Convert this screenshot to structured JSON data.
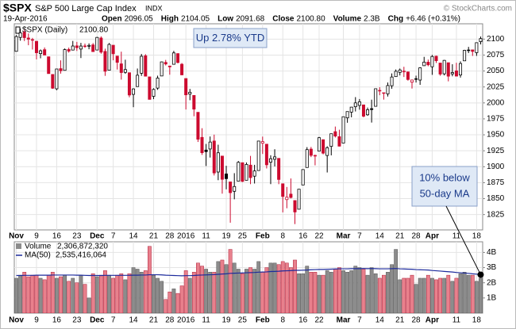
{
  "header": {
    "symbol": "$SPX",
    "name": "S&P 500 Large Cap Index",
    "exchange": "INDX",
    "credit": "© StockCharts.com",
    "date": "19-Apr-2016",
    "stats": [
      {
        "label": "Open",
        "value": "2096.05"
      },
      {
        "label": "High",
        "value": "2104.05"
      },
      {
        "label": "Low",
        "value": "2091.68"
      },
      {
        "label": "Close",
        "value": "2100.80"
      },
      {
        "label": "Volume",
        "value": "2.3B"
      },
      {
        "label": "Chg",
        "value": "+6.46 (+0.31%)"
      }
    ]
  },
  "chart_data": [
    {
      "type": "candlestick",
      "name": "$SPX (Daily)",
      "legend_value": "2100.80",
      "up_color": "#000000",
      "down_color": "#cc0a2f",
      "grid": true,
      "categories": [
        "Nov",
        null,
        null,
        null,
        null,
        "9",
        null,
        null,
        null,
        null,
        "16",
        null,
        null,
        null,
        null,
        "23",
        null,
        null,
        null,
        null,
        "Dec",
        null,
        null,
        null,
        "7",
        null,
        null,
        null,
        null,
        "14",
        null,
        null,
        null,
        null,
        "21",
        null,
        null,
        null,
        "28",
        null,
        null,
        null,
        "2016",
        null,
        null,
        null,
        null,
        "11",
        null,
        null,
        null,
        null,
        "19",
        null,
        null,
        null,
        "25",
        null,
        null,
        null,
        null,
        "Feb",
        null,
        null,
        null,
        null,
        "8",
        null,
        null,
        null,
        null,
        "16",
        null,
        null,
        null,
        "22",
        null,
        null,
        null,
        null,
        null,
        "Mar",
        null,
        null,
        null,
        "7",
        null,
        null,
        null,
        null,
        "14",
        null,
        null,
        null,
        null,
        "21",
        null,
        null,
        null,
        "28",
        null,
        null,
        null,
        "Apr",
        null,
        null,
        null,
        null,
        null,
        "11",
        null,
        null,
        null,
        null,
        "18",
        null
      ],
      "open": [
        2080.8,
        2102.6,
        2110.6,
        2101.7,
        2098.6,
        2096.6,
        2077.3,
        2083.4,
        2072.3,
        2044.6,
        2022.1,
        2053.7,
        2051.0,
        2083.7,
        2082.8,
        2089.4,
        2084.4,
        2089.3,
        2088.8,
        2090.9,
        2082.9,
        2101.7,
        2080.7,
        2051.2,
        2090.4,
        2073.4,
        2061.2,
        2047.9,
        2047.3,
        2013.4,
        2025.6,
        2046.5,
        2073.8,
        2040.8,
        2010.3,
        2023.2,
        2042.2,
        2063.5,
        2057.8,
        2060.5,
        2077.3,
        2060.6,
        2038.2,
        2013.8,
        2011.7,
        1985.3,
        1945.97,
        1926.1,
        1927.8,
        1940.3,
        1891.7,
        1916.7,
        1888.7,
        1876.2,
        1861.5,
        1877.4,
        1906.3,
        1878.8,
        1902.5,
        1885.2,
        1894.0,
        1936.9,
        1935.3,
        1907.1,
        1911.7,
        1913.1,
        1873.3,
        1848.5,
        1857.1,
        1847.0,
        1833.4,
        1871.4,
        1898.8,
        1927.6,
        1916.7,
        1924.4,
        1942.4,
        1917.6,
        1931.9,
        1954.95,
        1947.1,
        1937.1,
        1976.6,
        1985.6,
        1994.0,
        1996.1,
        1996.9,
        1981.4,
        1990.97,
        1994.7,
        2019.3,
        2015.3,
        2014.2,
        2026.9,
        2041.2,
        2047.9,
        2048.6,
        2048.6,
        2032.5,
        2037.9,
        2035.8,
        2058.3,
        2063.8,
        2056.6,
        2073.2,
        2062.5,
        2045.6,
        2063.0,
        2045.5,
        2050.2,
        2043.7,
        2065.9,
        2082.9,
        2083.1,
        2078.8,
        2096.05
      ],
      "high": [
        2106.2,
        2116.5,
        2114.6,
        2108.8,
        2101.9,
        2096.6,
        2083.7,
        2086.9,
        2072.3,
        2044.6,
        2053.2,
        2066.7,
        2085.3,
        2086.7,
        2097.1,
        2095.6,
        2094.1,
        2093.0,
        2093.3,
        2093.8,
        2103.4,
        2104.3,
        2085.0,
        2093.8,
        2090.4,
        2073.4,
        2080.3,
        2067.7,
        2047.3,
        2022.9,
        2053.9,
        2076.7,
        2076.4,
        2040.8,
        2022.9,
        2042.7,
        2064.7,
        2067.4,
        2057.8,
        2081.6,
        2077.3,
        2062.5,
        2038.2,
        2021.9,
        2011.7,
        1985.3,
        1960.4,
        1935.7,
        1947.4,
        1950.3,
        1934.5,
        1916.7,
        1901.4,
        1876.2,
        1889.9,
        1908.9,
        1906.3,
        1906.7,
        1916.98,
        1902.96,
        1940.2,
        1947.2,
        1935.3,
        1918.0,
        1927.4,
        1913.1,
        1873.3,
        1868.3,
        1881.6,
        1847.0,
        1864.8,
        1895.8,
        1930.7,
        1930.99,
        1918.8,
        1946.7,
        1942.4,
        1932.1,
        1951.8,
        1962.96,
        1958.0,
        1978.4,
        1986.5,
        1993.7,
        2009.1,
        2006.1,
        1996.9,
        1992.7,
        2005.1,
        2022.4,
        2024.6,
        2015.9,
        2032.0,
        2046.2,
        2052.4,
        2053.9,
        2056.6,
        2048.6,
        2036.0,
        2042.7,
        2055.9,
        2072.2,
        2067.9,
        2075.1,
        2074.0,
        2062.5,
        2067.3,
        2063.0,
        2060.6,
        2062.9,
        2065.1,
        2083.2,
        2087.8,
        2083.2,
        2094.7,
        2104.05
      ],
      "low": [
        2080.8,
        2097.5,
        2096.98,
        2090.4,
        2083.7,
        2068.2,
        2069.9,
        2074.9,
        2045.7,
        2022.0,
        2019.9,
        2045.9,
        2051.0,
        2078.8,
        2082.8,
        2081.4,
        2070.3,
        2086.3,
        2084.1,
        2080.4,
        2082.9,
        2077.1,
        2042.4,
        2051.2,
        2066.8,
        2052.3,
        2036.5,
        2045.7,
        2008.8,
        1993.3,
        2025.6,
        2042.4,
        2041.7,
        2005.3,
        2005.9,
        2020.5,
        2042.2,
        2058.7,
        2044.2,
        2060.5,
        2061.97,
        2043.6,
        1989.7,
        2004.2,
        1979.1,
        1938.8,
        1918.5,
        1901.1,
        1914.4,
        1886.3,
        1878.9,
        1857.8,
        1864.6,
        1812.3,
        1848.98,
        1877.4,
        1875.97,
        1878.8,
        1872.7,
        1873.7,
        1894.0,
        1920.0,
        1897.3,
        1872.7,
        1900.5,
        1872.65,
        1828.5,
        1834.9,
        1850.3,
        1810.1,
        1833.4,
        1871.4,
        1898.8,
        1915.1,
        1902.2,
        1924.4,
        1919.4,
        1891.0,
        1917.8,
        1945.8,
        1931.8,
        1937.1,
        1968.9,
        1977.4,
        1986.6,
        1989.4,
        1977.4,
        1979.8,
        1969.2,
        1994.7,
        2012.1,
        2005.2,
        2010.0,
        2022.2,
        2041.2,
        2043.1,
        2040.6,
        2034.9,
        2022.5,
        2031.96,
        2028.3,
        2058.3,
        2057.5,
        2043.98,
        2062.6,
        2042.6,
        2043.1,
        2033.8,
        2041.7,
        2041.9,
        2039.7,
        2065.9,
        2078.1,
        2073.6,
        2073.7,
        2091.68
      ],
      "close": [
        2104.05,
        2109.79,
        2102.31,
        2099.93,
        2099.2,
        2078.58,
        2081.72,
        2075.0,
        2045.97,
        2023.04,
        2053.19,
        2050.44,
        2083.58,
        2081.24,
        2089.17,
        2086.59,
        2089.14,
        2088.87,
        2090.11,
        2080.41,
        2102.63,
        2079.51,
        2049.62,
        2091.69,
        2077.07,
        2063.59,
        2047.62,
        2052.23,
        2012.37,
        2021.94,
        2043.41,
        2073.07,
        2041.89,
        2005.55,
        2021.15,
        2038.97,
        2064.29,
        2060.99,
        2056.5,
        2078.36,
        2063.36,
        2043.94,
        2012.66,
        2016.71,
        1990.26,
        1943.09,
        1922.03,
        1923.67,
        1938.68,
        1890.28,
        1921.84,
        1880.33,
        1881.33,
        1859.33,
        1868.99,
        1906.9,
        1877.08,
        1903.63,
        1882.95,
        1893.36,
        1940.24,
        1939.38,
        1903.03,
        1912.53,
        1915.45,
        1880.05,
        1853.44,
        1852.21,
        1851.86,
        1829.08,
        1864.78,
        1895.58,
        1926.82,
        1917.83,
        1917.78,
        1945.5,
        1921.27,
        1929.8,
        1951.7,
        1948.05,
        1932.23,
        1978.35,
        1986.45,
        1993.4,
        1999.99,
        2001.76,
        1979.26,
        1989.26,
        1989.57,
        2022.19,
        2019.64,
        2015.93,
        2027.22,
        2040.59,
        2049.58,
        2051.6,
        2049.8,
        2036.71,
        2035.94,
        2037.05,
        2055.01,
        2063.95,
        2059.74,
        2072.78,
        2066.13,
        2045.17,
        2066.66,
        2041.91,
        2047.6,
        2041.99,
        2061.72,
        2082.42,
        2082.78,
        2080.73,
        2094.34,
        2100.8
      ],
      "ylim": [
        1801,
        2124
      ],
      "yticks": [
        1825,
        1850,
        1875,
        1900,
        1925,
        1950,
        1975,
        2000,
        2025,
        2050,
        2075,
        2100
      ],
      "annotations": [
        {
          "text": "Up 2.78% YTD"
        }
      ]
    },
    {
      "type": "bar",
      "name": "Volume",
      "legend_value": "2,306,872,320",
      "up_color": "#8c8c8c",
      "down_color": "#e8808c",
      "grid": true,
      "values": [
        2300000000.0,
        2500000000.0,
        2700000000.0,
        2400000000.0,
        2500000000.0,
        2500000000.0,
        2300000000.0,
        2200000000.0,
        2500000000.0,
        2700000000.0,
        2300000000.0,
        2400000000.0,
        2500000000.0,
        2100000000.0,
        2300000000.0,
        2000000000.0,
        2500000000.0,
        1900000000.0,
        1000000000.0,
        2600000000.0,
        2400000000.0,
        2500000000.0,
        2800000000.0,
        2500000000.0,
        2300000000.0,
        2500000000.0,
        2600000000.0,
        2200000000.0,
        2600000000.0,
        3000000000.0,
        2900000000.0,
        2700000000.0,
        2800000000.0,
        4400000000.0,
        2500000000.0,
        2300000000.0,
        2100000000.0,
        900000000.0,
        1400000000.0,
        1600000000.0,
        1300000000.0,
        1800000000.0,
        2800000000.0,
        2300000000.0,
        2700000000.0,
        3300000000.0,
        3100000000.0,
        2900000000.0,
        2700000000.0,
        2700000000.0,
        3400000000.0,
        3500000000.0,
        3200000000.0,
        4200000000.0,
        3300000000.0,
        2900000000.0,
        2600000000.0,
        2900000000.0,
        3000000000.0,
        2900000000.0,
        3400000000.0,
        2700000000.0,
        3000000000.0,
        3300000000.0,
        3300000000.0,
        3200000000.0,
        3400000000.0,
        3300000000.0,
        3000000000.0,
        3500000000.0,
        2600000000.0,
        2600000000.0,
        3100000000.0,
        2700000000.0,
        2700000000.0,
        2500000000.0,
        2500000000.0,
        2800000000.0,
        2700000000.0,
        2900000000.0,
        3000000000.0,
        2800000000.0,
        2700000000.0,
        2800000000.0,
        3100000000.0,
        3000000000.0,
        2900000000.0,
        2500000000.0,
        3000000000.0,
        2600000000.0,
        2300000000.0,
        2500000000.0,
        2700000000.0,
        3200000000.0,
        4200000000.0,
        2200000000.0,
        2300000000.0,
        2300000000.0,
        2500000000.0,
        1900000000.0,
        2300000000.0,
        2300000000.0,
        2500000000.0,
        2300000000.0,
        2200000000.0,
        2300000000.0,
        2300000000.0,
        2500000000.0,
        2100000000.0,
        2300000000.0,
        2600000000.0,
        2700000000.0,
        2500000000.0,
        2500000000.0,
        2100000000.0,
        2306872320
      ],
      "series": [
        {
          "name": "MA(50)",
          "legend_value": "2,535,416,064",
          "color": "#1c2a9c",
          "values": [
            2480000000.0,
            2480000000.0,
            2490000000.0,
            2490000000.0,
            2490000000.0,
            2500000000.0,
            2500000000.0,
            2500000000.0,
            2500000000.0,
            2510000000.0,
            2510000000.0,
            2510000000.0,
            2510000000.0,
            2510000000.0,
            2510000000.0,
            2500000000.0,
            2500000000.0,
            2490000000.0,
            2480000000.0,
            2480000000.0,
            2480000000.0,
            2480000000.0,
            2490000000.0,
            2490000000.0,
            2490000000.0,
            2490000000.0,
            2490000000.0,
            2490000000.0,
            2490000000.0,
            2500000000.0,
            2500000000.0,
            2510000000.0,
            2510000000.0,
            2530000000.0,
            2530000000.0,
            2530000000.0,
            2520000000.0,
            2500000000.0,
            2490000000.0,
            2480000000.0,
            2470000000.0,
            2460000000.0,
            2470000000.0,
            2470000000.0,
            2480000000.0,
            2500000000.0,
            2510000000.0,
            2520000000.0,
            2530000000.0,
            2540000000.0,
            2560000000.0,
            2580000000.0,
            2590000000.0,
            2620000000.0,
            2630000000.0,
            2640000000.0,
            2650000000.0,
            2660000000.0,
            2670000000.0,
            2680000000.0,
            2700000000.0,
            2710000000.0,
            2720000000.0,
            2740000000.0,
            2750000000.0,
            2760000000.0,
            2780000000.0,
            2790000000.0,
            2800000000.0,
            2820000000.0,
            2820000000.0,
            2830000000.0,
            2840000000.0,
            2860000000.0,
            2870000000.0,
            2880000000.0,
            2880000000.0,
            2890000000.0,
            2900000000.0,
            2910000000.0,
            2920000000.0,
            2920000000.0,
            2920000000.0,
            2930000000.0,
            2930000000.0,
            2930000000.0,
            2940000000.0,
            2930000000.0,
            2940000000.0,
            2930000000.0,
            2920000000.0,
            2920000000.0,
            2920000000.0,
            2930000000.0,
            2940000000.0,
            2920000000.0,
            2910000000.0,
            2900000000.0,
            2890000000.0,
            2870000000.0,
            2860000000.0,
            2850000000.0,
            2840000000.0,
            2810000000.0,
            2790000000.0,
            2770000000.0,
            2750000000.0,
            2730000000.0,
            2710000000.0,
            2680000000.0,
            2660000000.0,
            2640000000.0,
            2620000000.0,
            2590000000.0,
            2570000000.0,
            2535416064
          ]
        }
      ],
      "ylim": [
        0,
        4700000000.0
      ],
      "yticks": [
        {
          "value": 1000000000.0,
          "label": "1B"
        },
        {
          "value": 2000000000.0,
          "label": "2B"
        },
        {
          "value": 3000000000.0,
          "label": "3B"
        },
        {
          "value": 4000000000.0,
          "label": "4B"
        }
      ],
      "annotations": [
        {
          "lines": [
            "10% below",
            "50-day MA"
          ]
        }
      ]
    }
  ]
}
